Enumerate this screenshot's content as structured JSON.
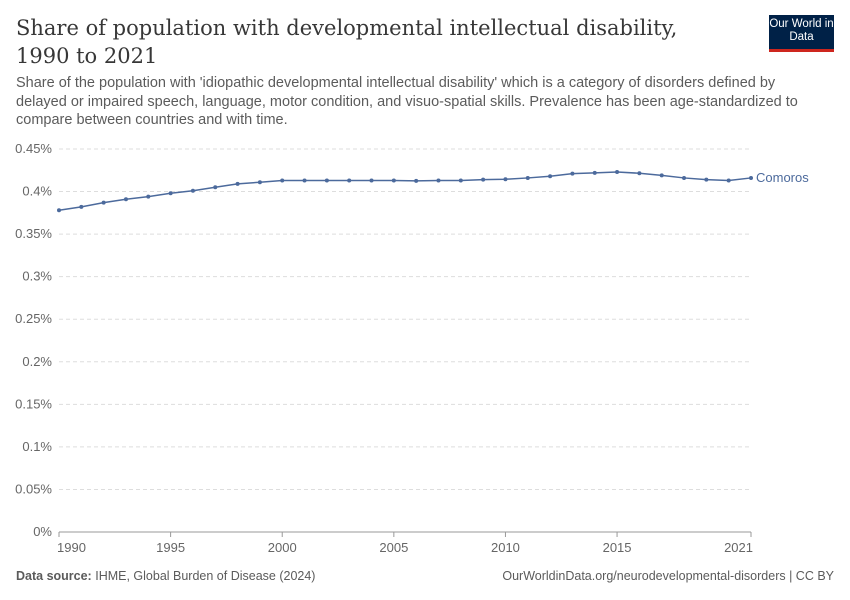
{
  "header": {
    "title": "Share of population with developmental intellectual disability, 1990 to 2021",
    "subtitle": "Share of the population with 'idiopathic developmental intellectual disability' which is a category of disorders defined by delayed or impaired speech, language, motor condition, and visuo-spatial skills. Prevalence has been age-standardized to compare between countries and with time.",
    "logo": "Our World in Data"
  },
  "footer": {
    "source_label": "Data source:",
    "source": "IHME, Global Burden of Disease (2024)",
    "url": "OurWorldinData.org/neurodevelopmental-disorders | CC BY"
  },
  "chart_data": {
    "type": "line",
    "title": "Share of population with developmental intellectual disability, 1990 to 2021",
    "xlabel": "",
    "ylabel": "",
    "xlim": [
      1990,
      2021
    ],
    "ylim": [
      0,
      0.45
    ],
    "grid": true,
    "legend": "inline-right",
    "x_ticks": [
      "1990",
      "1995",
      "2000",
      "2005",
      "2010",
      "2015",
      "2021"
    ],
    "y_ticks": [
      "0%",
      "0.05%",
      "0.1%",
      "0.15%",
      "0.2%",
      "0.25%",
      "0.3%",
      "0.35%",
      "0.4%",
      "0.45%"
    ],
    "series": [
      {
        "name": "Comoros",
        "color": "#4c6a9c",
        "x": [
          1990,
          1991,
          1992,
          1993,
          1994,
          1995,
          1996,
          1997,
          1998,
          1999,
          2000,
          2001,
          2002,
          2003,
          2004,
          2005,
          2006,
          2007,
          2008,
          2009,
          2010,
          2011,
          2012,
          2013,
          2014,
          2015,
          2016,
          2017,
          2018,
          2019,
          2020,
          2021
        ],
        "values": [
          0.378,
          0.382,
          0.387,
          0.391,
          0.394,
          0.398,
          0.401,
          0.405,
          0.409,
          0.411,
          0.413,
          0.413,
          0.413,
          0.413,
          0.413,
          0.413,
          0.4125,
          0.413,
          0.413,
          0.414,
          0.4145,
          0.416,
          0.418,
          0.421,
          0.422,
          0.423,
          0.4215,
          0.419,
          0.416,
          0.414,
          0.413,
          0.416
        ]
      }
    ]
  }
}
